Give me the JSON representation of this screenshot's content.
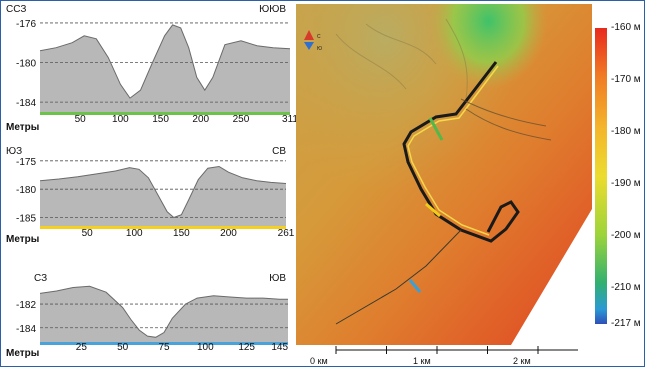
{
  "chart_data": [
    {
      "type": "area",
      "left_label": "ССЗ",
      "right_label": "ЮЮВ",
      "xlabel": "Метры",
      "x_ticks": [
        "50",
        "100",
        "150",
        "200",
        "250",
        "311"
      ],
      "x_tick_values": [
        50,
        100,
        150,
        200,
        250,
        311
      ],
      "y_ticks": [
        "-176",
        "-180",
        "-184"
      ],
      "y_tick_values": [
        -176,
        -180,
        -184
      ],
      "xlim": [
        0,
        311
      ],
      "ylim": [
        -185,
        -175.5
      ],
      "baseline_color": "#6dc24b",
      "x": [
        0,
        20,
        40,
        55,
        70,
        85,
        100,
        112,
        125,
        140,
        155,
        165,
        175,
        185,
        195,
        205,
        215,
        230,
        250,
        270,
        290,
        311
      ],
      "y": [
        -178.8,
        -178.5,
        -178,
        -177.3,
        -177.6,
        -179.5,
        -182.2,
        -183.6,
        -182.8,
        -180,
        -177.3,
        -176.2,
        -176.5,
        -178.5,
        -181.5,
        -182.8,
        -181.5,
        -178.2,
        -177.8,
        -178.3,
        -178.5,
        -178.6
      ]
    },
    {
      "type": "area",
      "left_label": "ЮЗ",
      "right_label": "СВ",
      "xlabel": "Метры",
      "x_ticks": [
        "50",
        "100",
        "150",
        "200",
        "261"
      ],
      "x_tick_values": [
        50,
        100,
        150,
        200,
        261
      ],
      "y_ticks": [
        "-175",
        "-180",
        "-185"
      ],
      "y_tick_values": [
        -175,
        -180,
        -185
      ],
      "xlim": [
        0,
        261
      ],
      "ylim": [
        -186.5,
        -174.5
      ],
      "baseline_color": "#f5d020",
      "x": [
        0,
        20,
        40,
        60,
        80,
        95,
        105,
        115,
        125,
        135,
        142,
        150,
        158,
        168,
        178,
        190,
        200,
        215,
        230,
        245,
        261
      ],
      "y": [
        -178.5,
        -178.2,
        -177.8,
        -177.3,
        -176.8,
        -176.2,
        -176.5,
        -178,
        -181,
        -184,
        -185,
        -184.5,
        -181.8,
        -178.3,
        -176.3,
        -176,
        -177,
        -178,
        -178.5,
        -178.8,
        -179
      ]
    },
    {
      "type": "area",
      "left_label": "СЗ",
      "right_label": "ЮВ",
      "xlabel": "Метры",
      "x_ticks": [
        "25",
        "50",
        "75",
        "100",
        "125",
        "145"
      ],
      "x_tick_values": [
        25,
        50,
        75,
        100,
        125,
        145
      ],
      "y_ticks": [
        "-182",
        "-184"
      ],
      "y_tick_values": [
        -182,
        -184
      ],
      "xlim": [
        0,
        150
      ],
      "ylim": [
        -185.2,
        -179.8
      ],
      "baseline_color": "#4aa3d8",
      "x": [
        0,
        10,
        20,
        30,
        40,
        50,
        55,
        60,
        65,
        70,
        75,
        80,
        88,
        95,
        105,
        115,
        125,
        135,
        145,
        150
      ],
      "y": [
        -181.1,
        -180.9,
        -180.6,
        -180.5,
        -181,
        -182.3,
        -183.3,
        -184.2,
        -184.7,
        -184.8,
        -184.4,
        -183.2,
        -182,
        -181.5,
        -181.3,
        -181.4,
        -181.5,
        -181.5,
        -181.6,
        -181.6
      ]
    },
    {
      "type": "heatmap",
      "legend_values": [
        "-160 м",
        "-170 м",
        "-180 м",
        "-190 м",
        "-200 м",
        "-210 м",
        "-217 м"
      ],
      "legend_numbers": [
        -160,
        -170,
        -180,
        -190,
        -200,
        -210,
        -217
      ],
      "vlim": [
        -217,
        -160
      ],
      "colors": [
        "#e8291e",
        "#f07a24",
        "#f4b62c",
        "#ecdc2e",
        "#9cd43a",
        "#32b070",
        "#2a9ad4",
        "#2e4fb8"
      ],
      "scale_labels": [
        "0 км",
        "1 км",
        "2 км"
      ],
      "scale_values": [
        0,
        1,
        2
      ],
      "compass": [
        "С",
        "Ю"
      ],
      "profile_line_colors": [
        "#52b84a",
        "#f2cc18",
        "#3aa0d8"
      ]
    }
  ]
}
